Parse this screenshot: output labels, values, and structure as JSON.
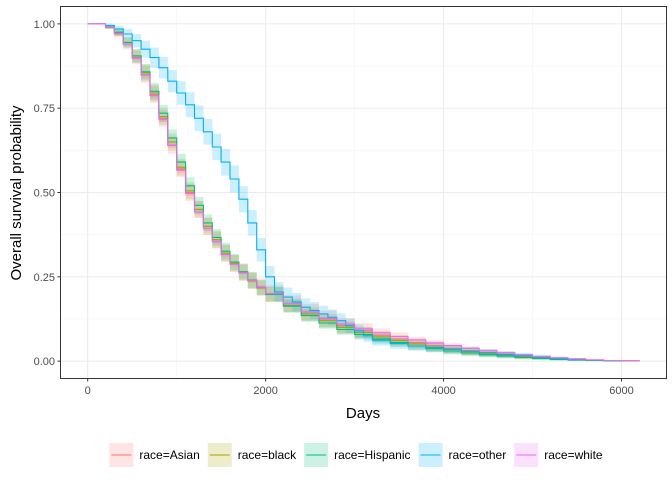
{
  "chart_data": {
    "type": "line",
    "xlabel": "Days",
    "ylabel": "Overall survival probability",
    "xlim": [
      -300,
      6500
    ],
    "ylim": [
      -0.05,
      1.05
    ],
    "x_ticks": [
      0,
      2000,
      4000,
      6000
    ],
    "x_tick_labels": [
      "0",
      "2000",
      "4000",
      "6000"
    ],
    "y_ticks": [
      0,
      0.25,
      0.5,
      0.75,
      1.0
    ],
    "y_tick_labels": [
      "0.00",
      "0.25",
      "0.50",
      "0.75",
      "1.00"
    ],
    "grid": true,
    "legend_position": "bottom",
    "series": [
      {
        "name": "race=Asian",
        "color": "#F8766D",
        "x": [
          0,
          100,
          200,
          300,
          400,
          500,
          600,
          700,
          800,
          900,
          1000,
          1100,
          1200,
          1300,
          1400,
          1500,
          1600,
          1700,
          1800,
          1900,
          2000,
          2200,
          2400,
          2600,
          2800,
          3000,
          3200,
          3400,
          3600,
          3800,
          4000,
          4200,
          4400,
          4600,
          4800,
          5000,
          5200,
          5400,
          5600,
          5800,
          6000,
          6200
        ],
        "y": [
          1.0,
          1.0,
          0.99,
          0.97,
          0.94,
          0.9,
          0.85,
          0.79,
          0.72,
          0.64,
          0.57,
          0.5,
          0.45,
          0.4,
          0.36,
          0.32,
          0.29,
          0.265,
          0.24,
          0.22,
          0.2,
          0.17,
          0.145,
          0.125,
          0.105,
          0.09,
          0.077,
          0.066,
          0.055,
          0.046,
          0.038,
          0.031,
          0.025,
          0.02,
          0.015,
          0.011,
          0.008,
          0.005,
          0.003,
          0.002,
          0.001,
          0.0
        ],
        "lower": [
          1.0,
          1.0,
          0.985,
          0.96,
          0.925,
          0.88,
          0.825,
          0.765,
          0.695,
          0.615,
          0.545,
          0.475,
          0.425,
          0.375,
          0.335,
          0.295,
          0.265,
          0.24,
          0.215,
          0.195,
          0.175,
          0.145,
          0.12,
          0.1,
          0.082,
          0.068,
          0.057,
          0.047,
          0.038,
          0.03,
          0.023,
          0.018,
          0.014,
          0.011,
          0.008,
          0.006,
          0.004,
          0.002,
          0.001,
          0.0,
          0.0,
          0.0
        ],
        "upper": [
          1.0,
          1.0,
          0.995,
          0.98,
          0.955,
          0.92,
          0.875,
          0.815,
          0.745,
          0.665,
          0.595,
          0.525,
          0.475,
          0.425,
          0.385,
          0.345,
          0.315,
          0.29,
          0.265,
          0.245,
          0.225,
          0.195,
          0.17,
          0.15,
          0.128,
          0.112,
          0.097,
          0.085,
          0.072,
          0.062,
          0.053,
          0.044,
          0.036,
          0.029,
          0.022,
          0.016,
          0.012,
          0.008,
          0.005,
          0.004,
          0.002,
          0.0
        ]
      },
      {
        "name": "race=black",
        "color": "#A3A500",
        "x": [
          0,
          100,
          200,
          300,
          400,
          500,
          600,
          700,
          800,
          900,
          1000,
          1100,
          1200,
          1300,
          1400,
          1500,
          1600,
          1700,
          1800,
          1900,
          2000,
          2200,
          2400,
          2600,
          2800,
          3000,
          3200,
          3400,
          3600,
          3800,
          4000,
          4200,
          4400,
          4600,
          4800,
          5000,
          5200,
          5400,
          5600,
          5800,
          6000,
          6200
        ],
        "y": [
          1.0,
          1.0,
          0.99,
          0.975,
          0.945,
          0.905,
          0.855,
          0.795,
          0.725,
          0.65,
          0.575,
          0.505,
          0.45,
          0.4,
          0.36,
          0.32,
          0.29,
          0.262,
          0.238,
          0.217,
          0.198,
          0.165,
          0.14,
          0.12,
          0.1,
          0.085,
          0.072,
          0.061,
          0.051,
          0.042,
          0.035,
          0.028,
          0.022,
          0.017,
          0.013,
          0.009,
          0.006,
          0.004,
          0.002,
          0.001,
          0.001,
          0.0
        ],
        "lower": [
          1.0,
          1.0,
          0.985,
          0.965,
          0.93,
          0.885,
          0.83,
          0.77,
          0.7,
          0.625,
          0.55,
          0.48,
          0.425,
          0.375,
          0.335,
          0.295,
          0.265,
          0.238,
          0.214,
          0.194,
          0.176,
          0.145,
          0.12,
          0.1,
          0.082,
          0.068,
          0.056,
          0.046,
          0.037,
          0.029,
          0.023,
          0.017,
          0.013,
          0.009,
          0.006,
          0.004,
          0.002,
          0.001,
          0.0,
          0.0,
          0.0,
          0.0
        ],
        "upper": [
          1.0,
          1.0,
          0.995,
          0.985,
          0.96,
          0.925,
          0.88,
          0.82,
          0.75,
          0.675,
          0.6,
          0.53,
          0.475,
          0.425,
          0.385,
          0.345,
          0.315,
          0.286,
          0.262,
          0.24,
          0.22,
          0.185,
          0.16,
          0.14,
          0.118,
          0.102,
          0.088,
          0.076,
          0.065,
          0.055,
          0.047,
          0.039,
          0.031,
          0.025,
          0.02,
          0.014,
          0.01,
          0.007,
          0.004,
          0.002,
          0.002,
          0.0
        ]
      },
      {
        "name": "race=Hispanic",
        "color": "#00BF7D",
        "x": [
          0,
          100,
          200,
          300,
          400,
          500,
          600,
          700,
          800,
          900,
          1000,
          1100,
          1200,
          1300,
          1400,
          1500,
          1600,
          1700,
          1800,
          1900,
          2000,
          2200,
          2400,
          2600,
          2800,
          3000,
          3200,
          3400,
          3600,
          3800,
          4000,
          4200,
          4400,
          4600,
          4800,
          5000,
          5200,
          5400,
          5600,
          5800,
          6000
        ],
        "y": [
          1.0,
          1.0,
          0.99,
          0.975,
          0.945,
          0.905,
          0.858,
          0.8,
          0.735,
          0.662,
          0.59,
          0.52,
          0.462,
          0.41,
          0.367,
          0.326,
          0.294,
          0.265,
          0.24,
          0.218,
          0.198,
          0.163,
          0.135,
          0.113,
          0.094,
          0.079,
          0.066,
          0.055,
          0.045,
          0.037,
          0.03,
          0.024,
          0.019,
          0.015,
          0.011,
          0.008,
          0.005,
          0.003,
          0.002,
          0.001,
          0.0
        ],
        "lower": [
          1.0,
          1.0,
          0.985,
          0.965,
          0.93,
          0.885,
          0.835,
          0.775,
          0.71,
          0.637,
          0.565,
          0.495,
          0.437,
          0.385,
          0.342,
          0.301,
          0.27,
          0.242,
          0.217,
          0.196,
          0.177,
          0.144,
          0.117,
          0.096,
          0.078,
          0.064,
          0.052,
          0.042,
          0.033,
          0.026,
          0.02,
          0.015,
          0.011,
          0.008,
          0.005,
          0.003,
          0.002,
          0.001,
          0.0,
          0.0,
          0.0
        ],
        "upper": [
          1.0,
          1.0,
          0.995,
          0.985,
          0.96,
          0.925,
          0.88,
          0.825,
          0.76,
          0.687,
          0.615,
          0.545,
          0.487,
          0.435,
          0.392,
          0.351,
          0.318,
          0.288,
          0.263,
          0.24,
          0.219,
          0.182,
          0.153,
          0.13,
          0.11,
          0.094,
          0.08,
          0.068,
          0.057,
          0.048,
          0.04,
          0.033,
          0.027,
          0.022,
          0.017,
          0.013,
          0.008,
          0.005,
          0.004,
          0.002,
          0.0
        ]
      },
      {
        "name": "race=other",
        "color": "#00B0F6",
        "x": [
          0,
          100,
          200,
          300,
          400,
          500,
          600,
          700,
          800,
          900,
          1000,
          1100,
          1200,
          1300,
          1400,
          1500,
          1600,
          1700,
          1800,
          1900,
          2000,
          2100,
          2200,
          2300,
          2400,
          2500,
          2600,
          2700,
          2800,
          2900,
          3000,
          3100,
          3200,
          3400,
          3600,
          3800,
          4000,
          4200,
          4400,
          4600,
          4800,
          5000,
          5200,
          5400,
          5500
        ],
        "y": [
          1.0,
          1.0,
          0.995,
          0.985,
          0.97,
          0.95,
          0.925,
          0.9,
          0.87,
          0.83,
          0.795,
          0.76,
          0.72,
          0.68,
          0.635,
          0.59,
          0.54,
          0.48,
          0.41,
          0.33,
          0.25,
          0.205,
          0.19,
          0.175,
          0.16,
          0.15,
          0.14,
          0.13,
          0.12,
          0.105,
          0.09,
          0.075,
          0.062,
          0.052,
          0.045,
          0.04,
          0.035,
          0.03,
          0.025,
          0.02,
          0.016,
          0.012,
          0.008,
          0.004,
          0.003
        ],
        "lower": [
          1.0,
          1.0,
          0.99,
          0.975,
          0.955,
          0.93,
          0.9,
          0.87,
          0.838,
          0.797,
          0.76,
          0.723,
          0.682,
          0.642,
          0.596,
          0.55,
          0.5,
          0.441,
          0.372,
          0.295,
          0.218,
          0.176,
          0.162,
          0.148,
          0.134,
          0.125,
          0.116,
          0.107,
          0.098,
          0.084,
          0.071,
          0.057,
          0.046,
          0.037,
          0.031,
          0.027,
          0.023,
          0.019,
          0.015,
          0.011,
          0.008,
          0.005,
          0.003,
          0.001,
          0.0
        ],
        "upper": [
          1.0,
          1.0,
          1.0,
          0.995,
          0.985,
          0.97,
          0.95,
          0.93,
          0.902,
          0.863,
          0.83,
          0.797,
          0.758,
          0.718,
          0.674,
          0.63,
          0.58,
          0.519,
          0.448,
          0.365,
          0.282,
          0.234,
          0.218,
          0.202,
          0.186,
          0.175,
          0.164,
          0.153,
          0.142,
          0.126,
          0.109,
          0.093,
          0.078,
          0.067,
          0.059,
          0.053,
          0.047,
          0.041,
          0.035,
          0.029,
          0.024,
          0.019,
          0.013,
          0.007,
          0.006
        ]
      },
      {
        "name": "race=white",
        "color": "#E76BF3",
        "x": [
          0,
          100,
          200,
          300,
          400,
          500,
          600,
          700,
          800,
          900,
          1000,
          1100,
          1200,
          1300,
          1400,
          1500,
          1600,
          1700,
          1800,
          1900,
          2000,
          2200,
          2400,
          2600,
          2800,
          3000,
          3200,
          3400,
          3600,
          3800,
          4000,
          4200,
          4400,
          4600,
          4800,
          5000,
          5200,
          5400,
          5600,
          5800,
          6000,
          6200
        ],
        "y": [
          1.0,
          1.0,
          0.99,
          0.972,
          0.94,
          0.898,
          0.848,
          0.787,
          0.717,
          0.64,
          0.566,
          0.497,
          0.442,
          0.394,
          0.354,
          0.316,
          0.287,
          0.262,
          0.239,
          0.219,
          0.2,
          0.17,
          0.146,
          0.127,
          0.11,
          0.096,
          0.084,
          0.073,
          0.063,
          0.054,
          0.046,
          0.038,
          0.031,
          0.025,
          0.019,
          0.014,
          0.01,
          0.007,
          0.004,
          0.002,
          0.001,
          0.0
        ],
        "lower": [
          1.0,
          1.0,
          0.988,
          0.968,
          0.935,
          0.892,
          0.841,
          0.779,
          0.709,
          0.632,
          0.558,
          0.489,
          0.434,
          0.386,
          0.346,
          0.309,
          0.28,
          0.255,
          0.232,
          0.212,
          0.194,
          0.164,
          0.141,
          0.122,
          0.105,
          0.091,
          0.08,
          0.069,
          0.059,
          0.05,
          0.043,
          0.035,
          0.028,
          0.022,
          0.017,
          0.012,
          0.008,
          0.005,
          0.003,
          0.001,
          0.0,
          0.0
        ],
        "upper": [
          1.0,
          1.0,
          0.992,
          0.976,
          0.945,
          0.904,
          0.855,
          0.795,
          0.725,
          0.648,
          0.574,
          0.505,
          0.45,
          0.402,
          0.362,
          0.323,
          0.294,
          0.269,
          0.246,
          0.226,
          0.206,
          0.176,
          0.151,
          0.132,
          0.115,
          0.101,
          0.088,
          0.077,
          0.067,
          0.058,
          0.049,
          0.041,
          0.034,
          0.028,
          0.021,
          0.016,
          0.012,
          0.009,
          0.005,
          0.003,
          0.002,
          0.0
        ]
      }
    ]
  }
}
